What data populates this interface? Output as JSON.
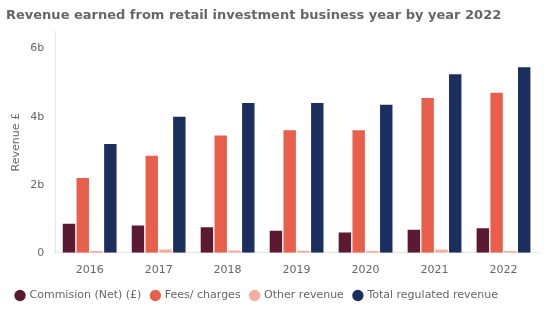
{
  "chart_data": {
    "type": "bar",
    "title": "Revenue earned from retail investment business year by year 2022",
    "ylabel": "Revenue £",
    "categories": [
      "2016",
      "2017",
      "2018",
      "2019",
      "2020",
      "2021",
      "2022"
    ],
    "series": [
      {
        "name": "Commision (Net) (£)",
        "color": "#5c1a32",
        "values": [
          0.85,
          0.8,
          0.75,
          0.65,
          0.6,
          0.68,
          0.72
        ]
      },
      {
        "name": "Fees/ charges",
        "color": "#e8604c",
        "values": [
          2.2,
          2.85,
          3.45,
          3.6,
          3.6,
          4.55,
          4.7
        ]
      },
      {
        "name": "Other revenue",
        "color": "#f4aea0",
        "values": [
          0.05,
          0.1,
          0.07,
          0.06,
          0.05,
          0.1,
          0.05
        ]
      },
      {
        "name": "Total regulated revenue",
        "color": "#1b2f5e",
        "values": [
          3.2,
          4.0,
          4.4,
          4.4,
          4.35,
          5.25,
          5.45
        ]
      }
    ],
    "ylim": [
      0,
      6.5
    ],
    "yticks": [
      0,
      {
        "value": 2,
        "label": "2b"
      },
      {
        "value": 4,
        "label": "4b"
      },
      {
        "value": 6,
        "label": "6b"
      }
    ],
    "grid": false,
    "legend": "bottom"
  }
}
